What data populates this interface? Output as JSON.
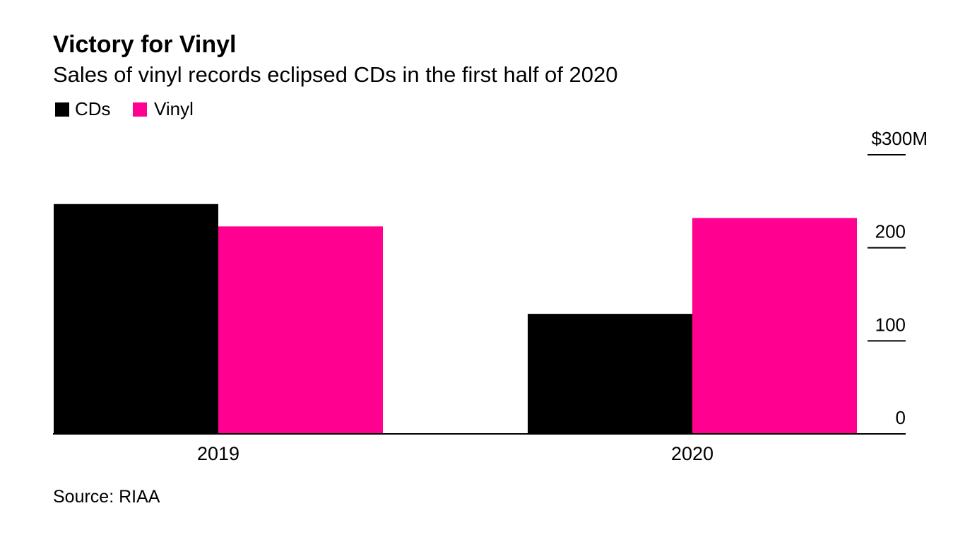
{
  "chart_data": {
    "type": "bar",
    "title": "Victory for Vinyl",
    "subtitle": "Sales of vinyl records eclipsed CDs in the first half of 2020",
    "categories": [
      "2019",
      "2020"
    ],
    "series": [
      {
        "name": "CDs",
        "color": "#000000",
        "values": [
          247,
          129
        ]
      },
      {
        "name": "Vinyl",
        "color": "#ff0090",
        "values": [
          223,
          232
        ]
      }
    ],
    "y_axis": {
      "min": 0,
      "max": 300,
      "ticks": [
        0,
        100,
        200,
        300
      ],
      "tick_labels": [
        "0",
        "100",
        "200",
        "$300M"
      ],
      "position": "right",
      "grid": false
    },
    "legend": {
      "position": "top-left"
    },
    "source": "Source: RIAA"
  }
}
